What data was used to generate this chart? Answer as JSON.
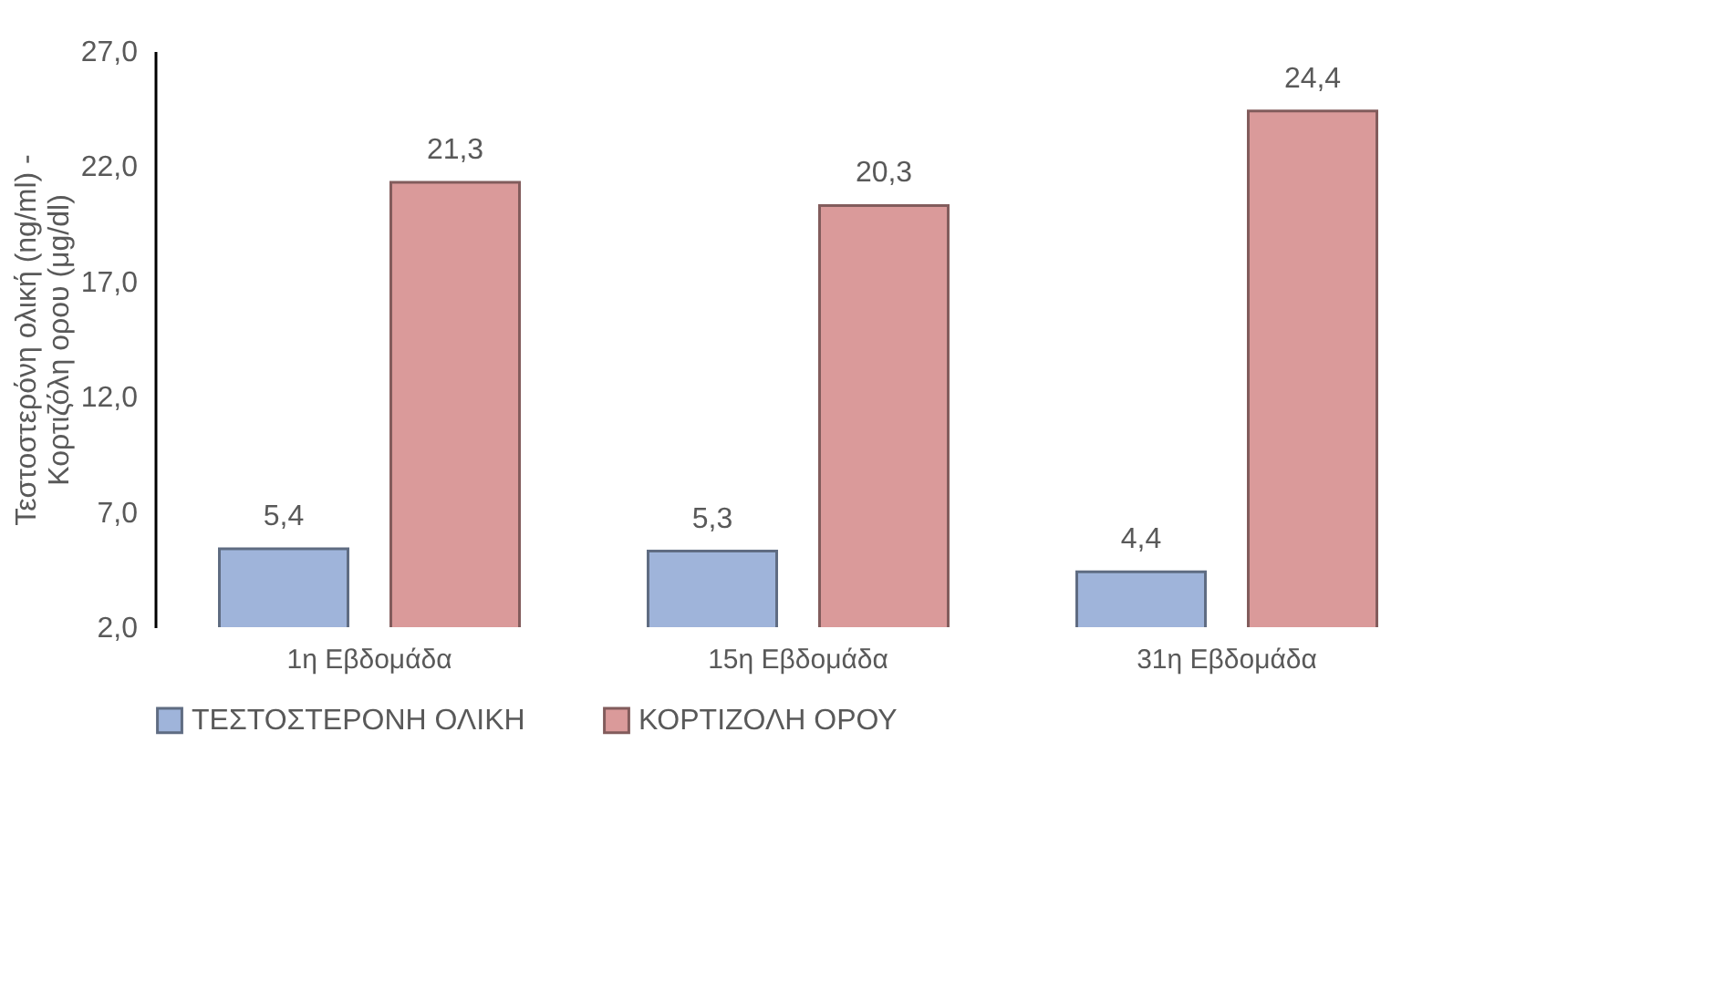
{
  "chart_data": {
    "type": "bar",
    "ylabel": "Τεστοστερόνη ολική (ng/ml) -\nΚορτιζόλη ορου  (μg/dl)",
    "categories": [
      "1η Εβδομάδα",
      "15η Εβδομάδα",
      "31η Εβδομάδα"
    ],
    "series": [
      {
        "name": "ΤΕΣΤΟΣΤΕΡΟΝΗ ΟΛΙΚΗ",
        "color": "#9fb4da",
        "values": [
          5.4,
          5.3,
          4.4
        ],
        "value_labels": [
          "5,4",
          "5,3",
          "4,4"
        ]
      },
      {
        "name": "ΚΟΡΤΙΖΟΛΗ ΟΡΟΥ",
        "color": "#da9a9a",
        "values": [
          21.3,
          20.3,
          24.4
        ],
        "value_labels": [
          "21,3",
          "20,3",
          "24,4"
        ]
      }
    ],
    "ylim": [
      2.0,
      27.0
    ],
    "yticks": [
      {
        "value": 2.0,
        "label": "2,0"
      },
      {
        "value": 7.0,
        "label": "7,0"
      },
      {
        "value": 12.0,
        "label": "12,0"
      },
      {
        "value": 17.0,
        "label": "17,0"
      },
      {
        "value": 22.0,
        "label": "22,0"
      },
      {
        "value": 27.0,
        "label": "27,0"
      }
    ],
    "grid": false,
    "legend": "bottom"
  }
}
